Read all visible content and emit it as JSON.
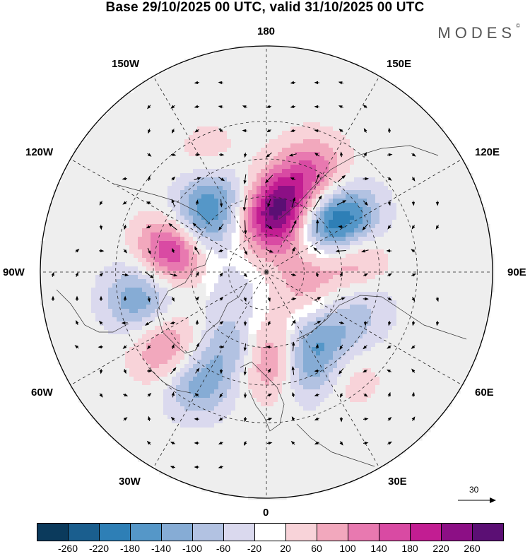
{
  "title": "Base 29/10/2025 00 UTC, valid 31/10/2025 00 UTC",
  "brand": {
    "name": "MODES",
    "mark": "©"
  },
  "map_labels": {
    "lon_180": "180",
    "lon_150w": "150W",
    "lon_150e": "150E",
    "lon_120w": "120W",
    "lon_120e": "120E",
    "lon_90w": "90W",
    "lon_90e": "90E",
    "lon_60w": "60W",
    "lon_60e": "60E",
    "lon_30w": "30W",
    "lon_30e": "30E",
    "lon_0": "0"
  },
  "reference_vector": {
    "value": "30"
  },
  "colorbar": {
    "ticks": [
      "-260",
      "-220",
      "-180",
      "-140",
      "-100",
      "-60",
      "-20",
      "20",
      "60",
      "100",
      "140",
      "180",
      "220",
      "260"
    ],
    "colors": [
      "#0b3a5c",
      "#1a5e8e",
      "#2e7fb6",
      "#5597c8",
      "#86acd5",
      "#b2c2e2",
      "#dad9ee",
      "#ffffff",
      "#f8d3d9",
      "#f2a8bd",
      "#e879b0",
      "#d94aa3",
      "#c21d92",
      "#8c0f85",
      "#5b0f74"
    ]
  },
  "anomaly_centers": [
    {
      "lon": 165,
      "lat": 60,
      "value": 170
    },
    {
      "lon": 155,
      "lat": 45,
      "value": 120
    },
    {
      "lon": 128,
      "lat": 60,
      "value": -160
    },
    {
      "lon": 123,
      "lat": 50,
      "value": -130
    },
    {
      "lon": 98,
      "lat": 55,
      "value": 110
    },
    {
      "lon": 72,
      "lat": 50,
      "value": -60
    },
    {
      "lon": 50,
      "lat": 50,
      "value": -50
    },
    {
      "lon": 38,
      "lat": 38,
      "value": 60
    },
    {
      "lon": 35,
      "lat": 58,
      "value": -90
    },
    {
      "lon": 22,
      "lat": 48,
      "value": -140
    },
    {
      "lon": 5,
      "lat": 52,
      "value": 130
    },
    {
      "lon": 2,
      "lat": 63,
      "value": 70
    },
    {
      "lon": -22,
      "lat": 58,
      "value": -110
    },
    {
      "lon": -32,
      "lat": 38,
      "value": -130
    },
    {
      "lon": -50,
      "lat": 38,
      "value": 70
    },
    {
      "lon": -56,
      "lat": 42,
      "value": 60
    },
    {
      "lon": -78,
      "lat": 38,
      "value": -140
    },
    {
      "lon": -105,
      "lat": 52,
      "value": 220
    },
    {
      "lon": -125,
      "lat": 57,
      "value": -160
    },
    {
      "lon": -148,
      "lat": 52,
      "value": -110
    },
    {
      "lon": -153,
      "lat": 40,
      "value": 60
    },
    {
      "lon": -170,
      "lat": 68,
      "value": -50
    },
    {
      "lon": 178,
      "lat": 70,
      "value": 210
    },
    {
      "lon": -60,
      "lat": 75,
      "value": -40
    },
    {
      "lon": 100,
      "lat": 75,
      "value": 50
    },
    {
      "lon": 60,
      "lat": 72,
      "value": 50
    }
  ]
}
